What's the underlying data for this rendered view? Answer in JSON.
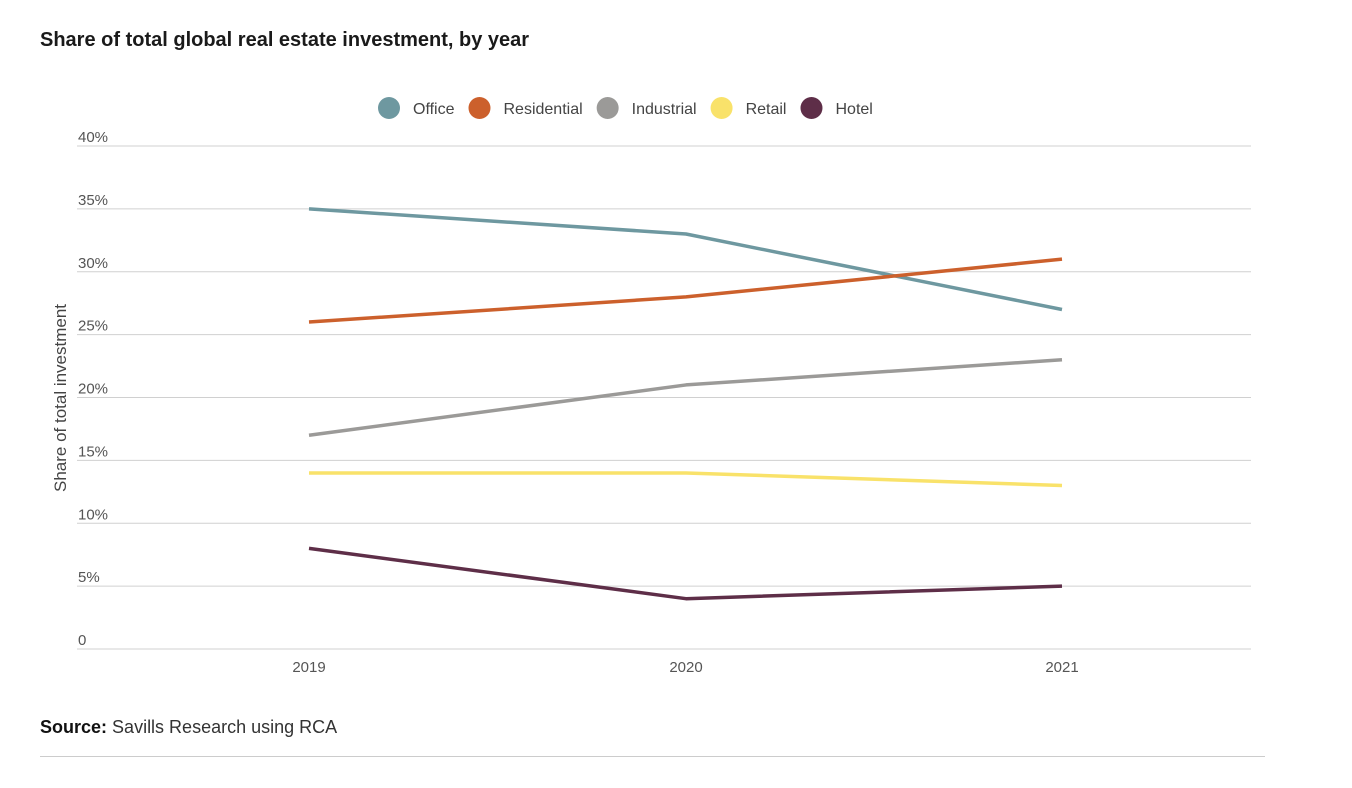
{
  "chart_data": {
    "type": "line",
    "title": "Share of total global real estate investment, by year",
    "xlabel": "",
    "ylabel": "Share of total investment",
    "categories": [
      "2019",
      "2020",
      "2021"
    ],
    "y_ticks": [
      "0",
      "5%",
      "10%",
      "15%",
      "20%",
      "25%",
      "30%",
      "35%",
      "40%"
    ],
    "ylim": [
      0,
      40
    ],
    "grid": true,
    "legend_position": "top-center",
    "series": [
      {
        "name": "Office",
        "color": "#6e98a0",
        "values": [
          35,
          33,
          27
        ]
      },
      {
        "name": "Residential",
        "color": "#cc602c",
        "values": [
          26,
          28,
          31
        ]
      },
      {
        "name": "Industrial",
        "color": "#9b9a98",
        "values": [
          17,
          21,
          23
        ]
      },
      {
        "name": "Retail",
        "color": "#f9e26a",
        "values": [
          14,
          14,
          13
        ]
      },
      {
        "name": "Hotel",
        "color": "#5e2e48",
        "values": [
          8,
          4,
          5
        ]
      }
    ]
  },
  "source": {
    "label": "Source:",
    "text": "Savills Research using RCA"
  }
}
